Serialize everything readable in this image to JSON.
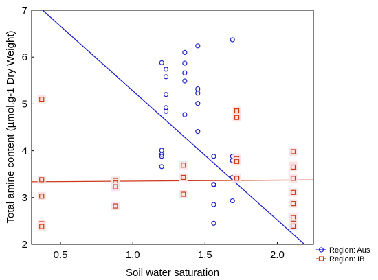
{
  "chart_data": {
    "type": "scatter",
    "xlabel": "Soil water saturation",
    "ylabel": "Total amine content (µmol.g-1 Dry Weight)",
    "xlim": [
      0.3,
      2.25
    ],
    "ylim": [
      2,
      7
    ],
    "xticks": [
      0.5,
      1.0,
      1.5,
      2.0
    ],
    "xtick_labels": [
      "0.5",
      "1.0",
      "1.5",
      "2.0"
    ],
    "yticks": [
      2,
      3,
      4,
      5,
      6,
      7
    ],
    "ytick_labels": [
      "2",
      "3",
      "4",
      "5",
      "6",
      "7"
    ],
    "legend_position": "bottom-right outside",
    "series": [
      {
        "name": "Region: Aus",
        "marker": "circle",
        "color": "#1f1fcc",
        "points": [
          [
            1.2,
            5.88
          ],
          [
            1.2,
            4.01
          ],
          [
            1.2,
            3.92
          ],
          [
            1.2,
            3.88
          ],
          [
            1.2,
            3.66
          ],
          [
            1.23,
            5.74
          ],
          [
            1.23,
            5.58
          ],
          [
            1.23,
            5.2
          ],
          [
            1.23,
            4.92
          ],
          [
            1.23,
            4.84
          ],
          [
            1.36,
            6.1
          ],
          [
            1.36,
            5.87
          ],
          [
            1.36,
            5.66
          ],
          [
            1.36,
            5.49
          ],
          [
            1.36,
            4.77
          ],
          [
            1.45,
            6.24
          ],
          [
            1.45,
            5.32
          ],
          [
            1.45,
            5.23
          ],
          [
            1.45,
            5.01
          ],
          [
            1.45,
            4.41
          ],
          [
            1.56,
            3.88
          ],
          [
            1.56,
            3.28
          ],
          [
            1.56,
            3.27
          ],
          [
            1.56,
            2.85
          ],
          [
            1.56,
            2.45
          ],
          [
            1.69,
            6.37
          ],
          [
            1.69,
            3.88
          ],
          [
            1.69,
            3.79
          ],
          [
            1.69,
            3.43
          ],
          [
            1.69,
            2.93
          ]
        ],
        "fit": {
          "intercept": 8.04,
          "slope": -2.76
        }
      },
      {
        "name": "Region: IB",
        "marker": "square",
        "color": "#cc3a1a",
        "points": [
          [
            0.37,
            5.1
          ],
          [
            0.37,
            3.38
          ],
          [
            0.37,
            3.03
          ],
          [
            0.37,
            2.44
          ],
          [
            0.37,
            2.38
          ],
          [
            0.88,
            3.36
          ],
          [
            0.88,
            3.31
          ],
          [
            0.88,
            3.23
          ],
          [
            0.88,
            2.82
          ],
          [
            1.35,
            3.69
          ],
          [
            1.35,
            3.43
          ],
          [
            1.35,
            3.07
          ],
          [
            1.72,
            4.85
          ],
          [
            1.72,
            4.71
          ],
          [
            1.72,
            3.83
          ],
          [
            1.72,
            3.77
          ],
          [
            1.72,
            3.41
          ],
          [
            2.11,
            3.98
          ],
          [
            2.11,
            3.68
          ],
          [
            2.11,
            3.65
          ],
          [
            2.11,
            3.41
          ],
          [
            2.11,
            3.11
          ],
          [
            2.11,
            2.87
          ],
          [
            2.11,
            2.57
          ],
          [
            2.11,
            2.45
          ],
          [
            2.11,
            2.39
          ]
        ],
        "fit": {
          "intercept": 3.33,
          "slope": 0.02
        }
      }
    ]
  }
}
